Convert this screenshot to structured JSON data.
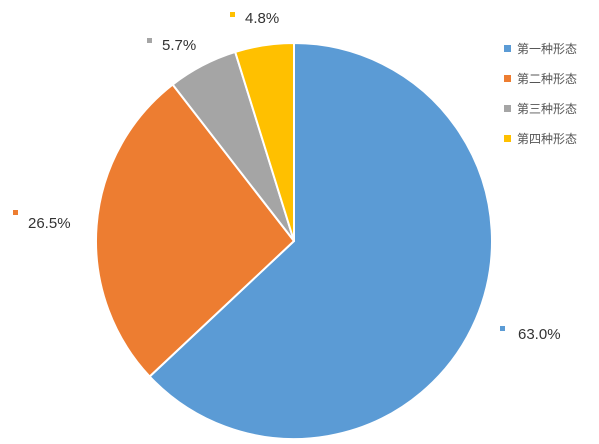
{
  "chart_data": {
    "type": "pie",
    "slices": [
      {
        "label": "第一种形态",
        "value": 63.0,
        "value_label": "63.0%",
        "color": "#5B9BD5"
      },
      {
        "label": "第二种形态",
        "value": 26.5,
        "value_label": "26.5%",
        "color": "#ED7D31"
      },
      {
        "label": "第三种形态",
        "value": 5.7,
        "value_label": "5.7%",
        "color": "#A5A5A5"
      },
      {
        "label": "第四种形态",
        "value": 4.8,
        "value_label": "4.8%",
        "color": "#FFC000"
      }
    ],
    "start_angle": "12 o'clock",
    "direction": "clockwise",
    "legend_position": "top-right",
    "data_labels": "outside with color marker"
  }
}
